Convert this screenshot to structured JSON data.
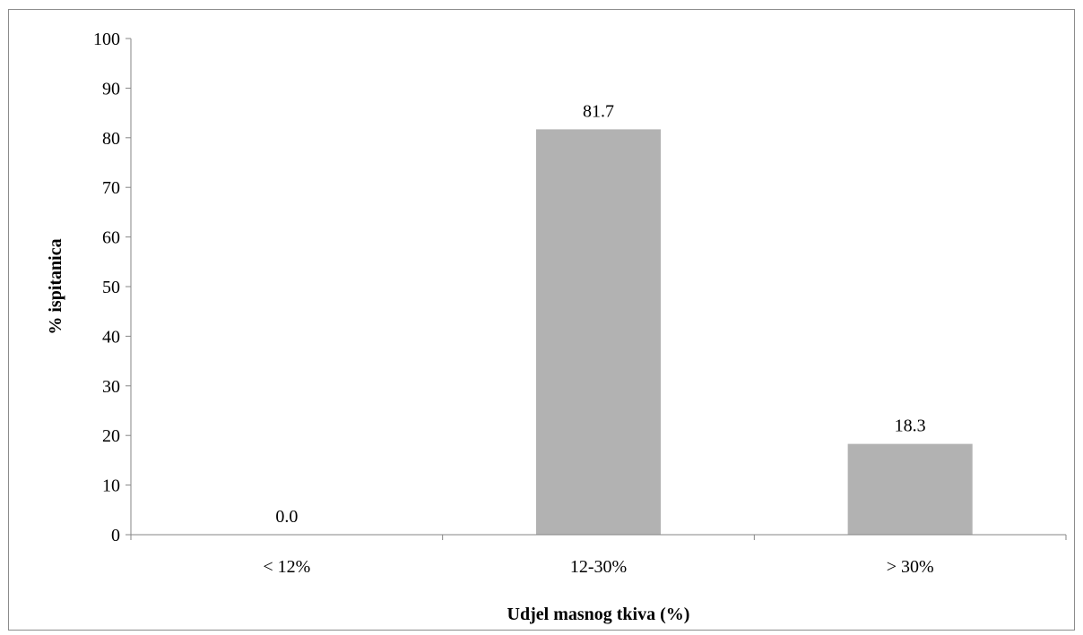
{
  "chart_data": {
    "type": "bar",
    "categories": [
      "< 12%",
      "12-30%",
      "> 30%"
    ],
    "values": [
      0.0,
      81.7,
      18.3
    ],
    "data_labels": [
      "0.0",
      "81.7",
      "18.3"
    ],
    "title": "",
    "xlabel": "Udjel masnog tkiva (%)",
    "ylabel": "% ispitanica",
    "ylim": [
      0,
      100
    ],
    "yticks": [
      0,
      10,
      20,
      30,
      40,
      50,
      60,
      70,
      80,
      90,
      100
    ],
    "grid": false,
    "legend": "none",
    "bar_color": "#b2b2b2",
    "axis_color": "#868686"
  }
}
